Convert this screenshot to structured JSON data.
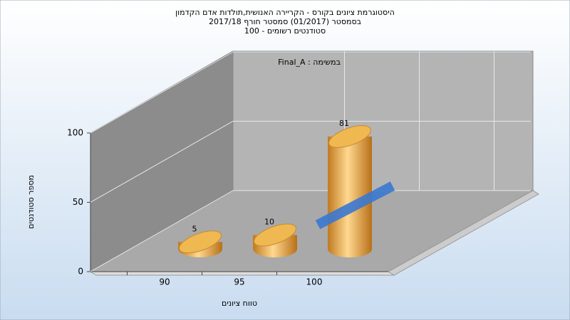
{
  "chart_data": {
    "type": "bar",
    "title": [
      "היסטוגרמת ציונים בקורס - הקריירה האנושית,תולדות אדם הקדמון",
      "בסמסטר  (01/2017)  סמסטר חורף  2017/18",
      "סטודנטים רשומים - 100"
    ],
    "annotation": "במשימה : Final_A",
    "x_label": "טווח ציונים",
    "y_label": "מספר סטודנטים",
    "categories": [
      "90",
      "95",
      "100"
    ],
    "series": [
      {
        "type": "bar",
        "color": "#e8a840",
        "values": [
          5,
          10,
          81
        ]
      },
      {
        "type": "line",
        "color": "#3a78d0",
        "values": [
          null,
          2,
          30
        ]
      }
    ],
    "ylim": [
      0,
      100
    ],
    "yticks": [
      0,
      50,
      100
    ],
    "grid": true
  }
}
